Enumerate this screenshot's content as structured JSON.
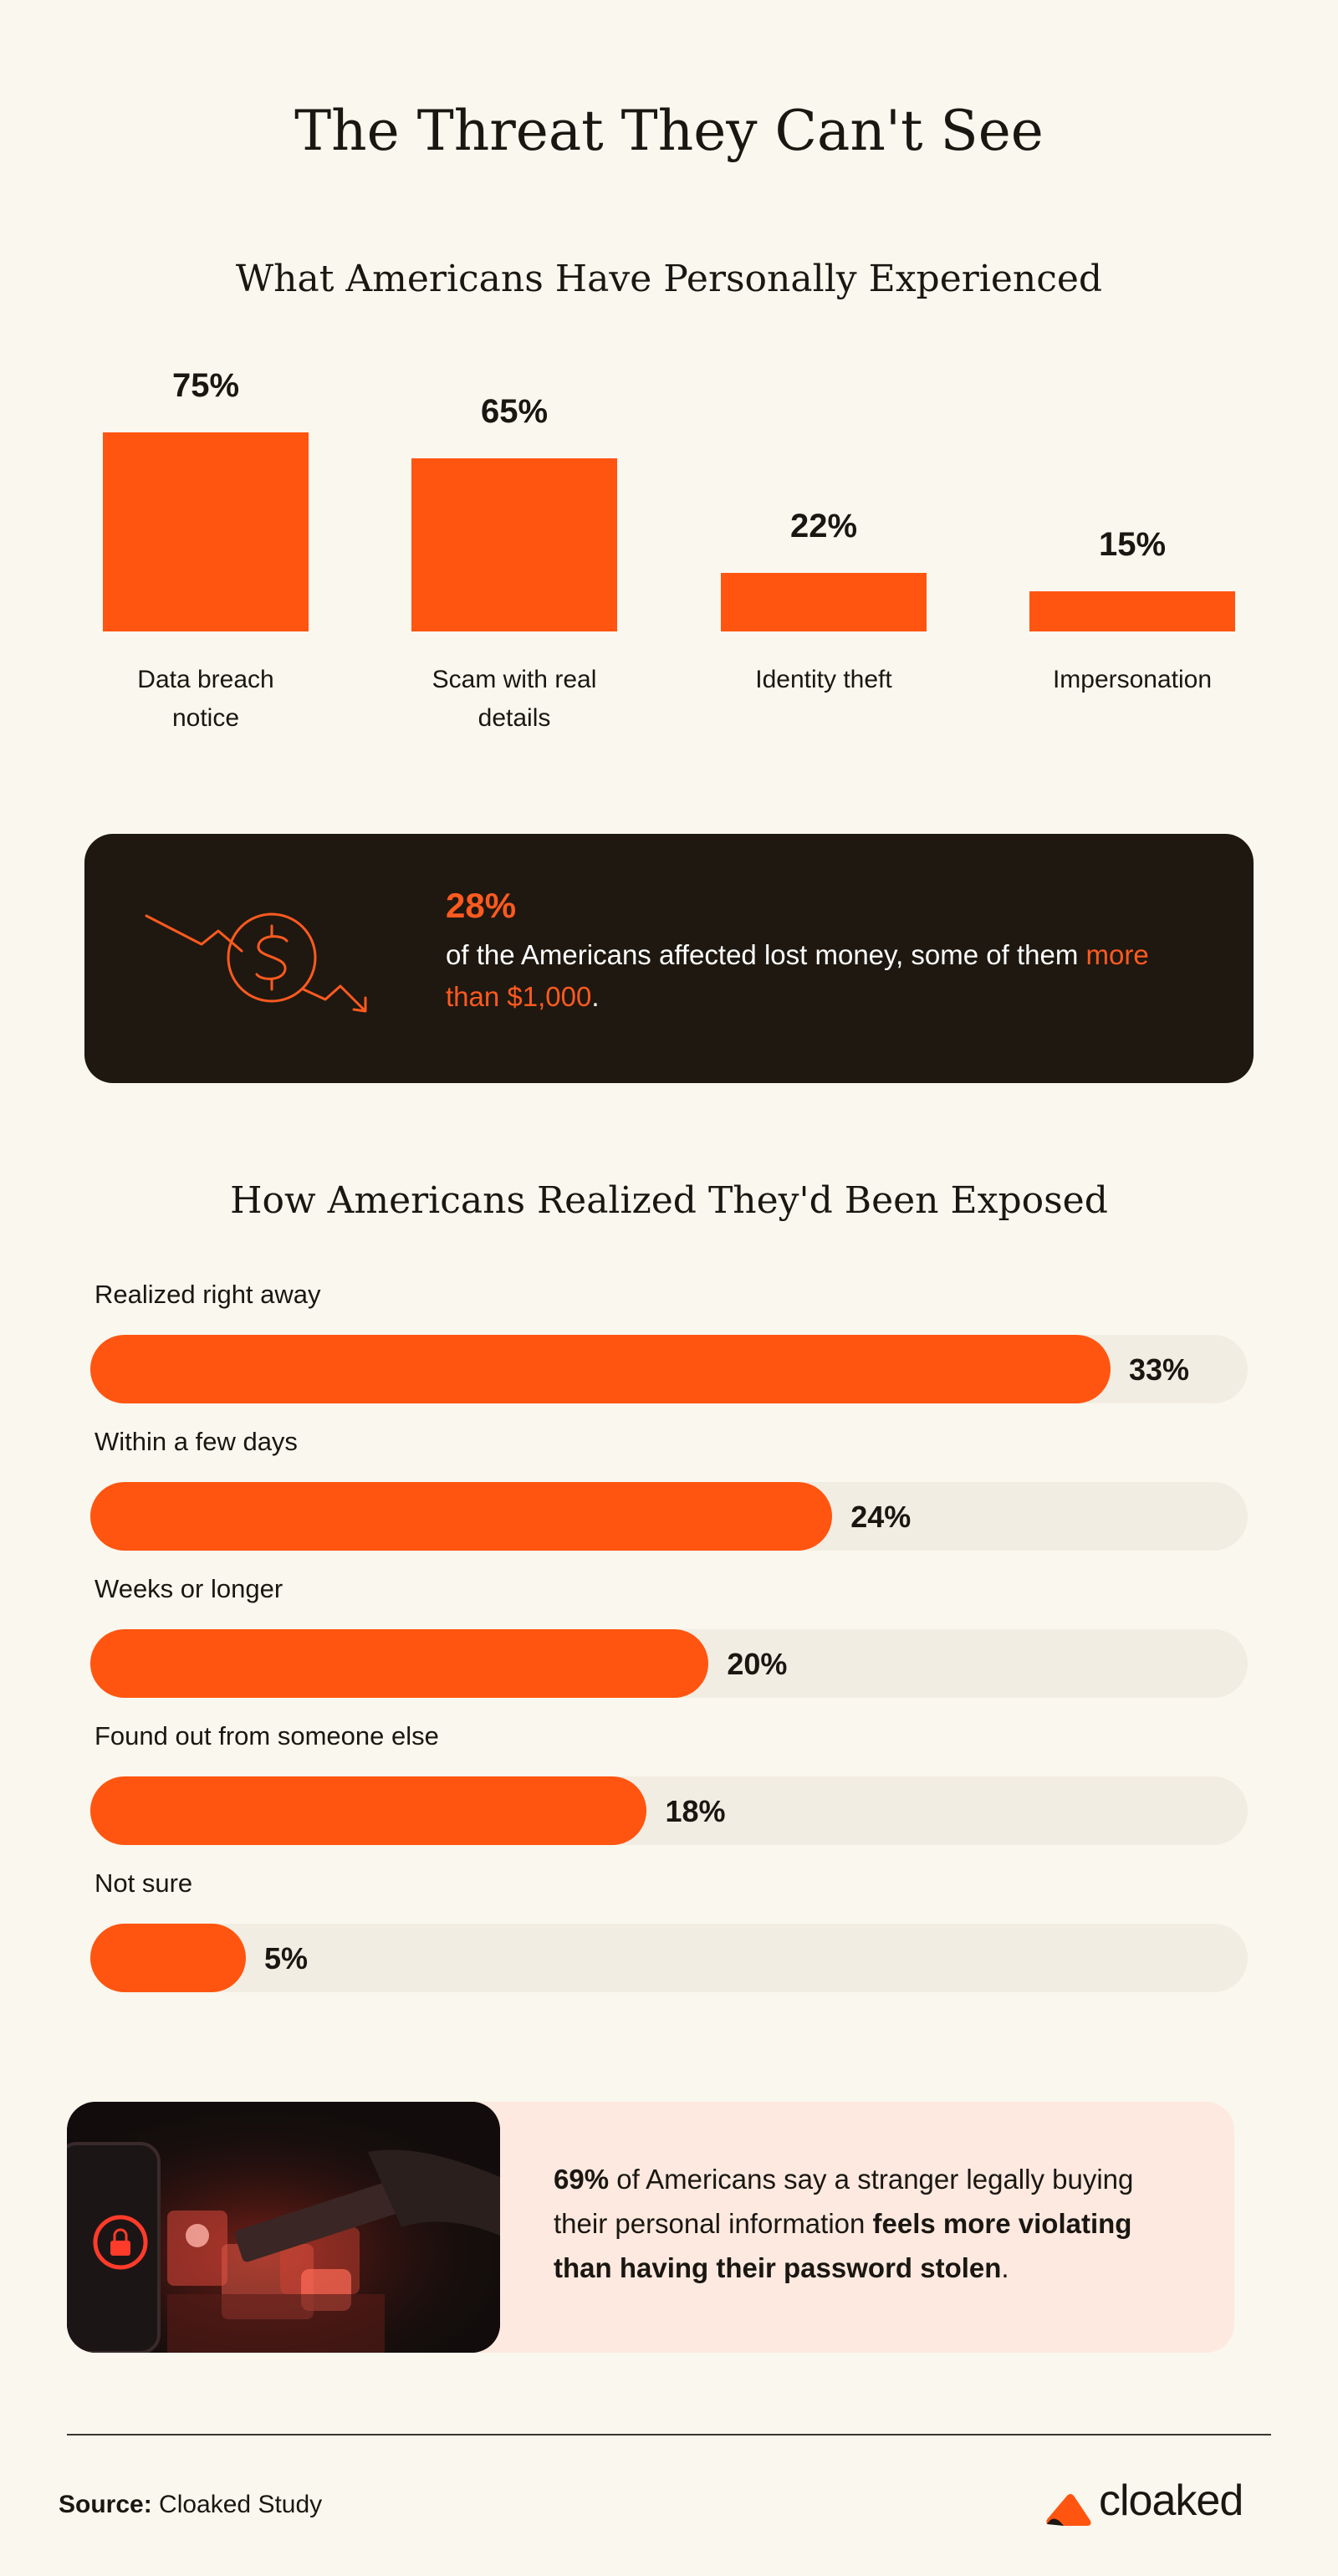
{
  "title": "The Threat They Can't See",
  "colors": {
    "accent": "#ff5510",
    "dark_card": "#1e1810",
    "track": "#f2ede2",
    "stat_card": "#fde9df"
  },
  "chart_data": [
    {
      "type": "bar",
      "title": "What Americans Have Personally Experienced",
      "categories": [
        "Data breach notice",
        "Scam with real details",
        "Identity theft",
        "Impersonation"
      ],
      "values": [
        75,
        65,
        22,
        15
      ],
      "value_labels": [
        "75%",
        "65%",
        "22%",
        "15%"
      ],
      "unit": "%",
      "ylim": [
        0,
        100
      ]
    },
    {
      "type": "bar",
      "orientation": "horizontal",
      "title": "How Americans Realized They'd Been Exposed",
      "categories": [
        "Realized right away",
        "Within a few days",
        "Weeks or longer",
        "Found out from someone else",
        "Not sure"
      ],
      "values": [
        33,
        24,
        20,
        18,
        5
      ],
      "value_labels": [
        "33%",
        "24%",
        "20%",
        "18%",
        "5%"
      ],
      "unit": "%",
      "xlim": [
        0,
        40
      ]
    }
  ],
  "loss_card": {
    "icon": "money-loss-icon",
    "percent": "28%",
    "text": "of the Americans affected lost money, some of them",
    "highlight": "more than $1,000",
    "end": "."
  },
  "stat_card": {
    "image": "phone-lock-data-image",
    "pct": "69%",
    "text1": " of Americans say a stranger legally buying their personal information ",
    "bold": "feels more violating than having their password stolen",
    "end": "."
  },
  "footer": {
    "source_label": "Source:",
    "source_value": " Cloaked Study",
    "logo_text": "cloaked",
    "logo_icon": "cloaked-logo-icon"
  }
}
